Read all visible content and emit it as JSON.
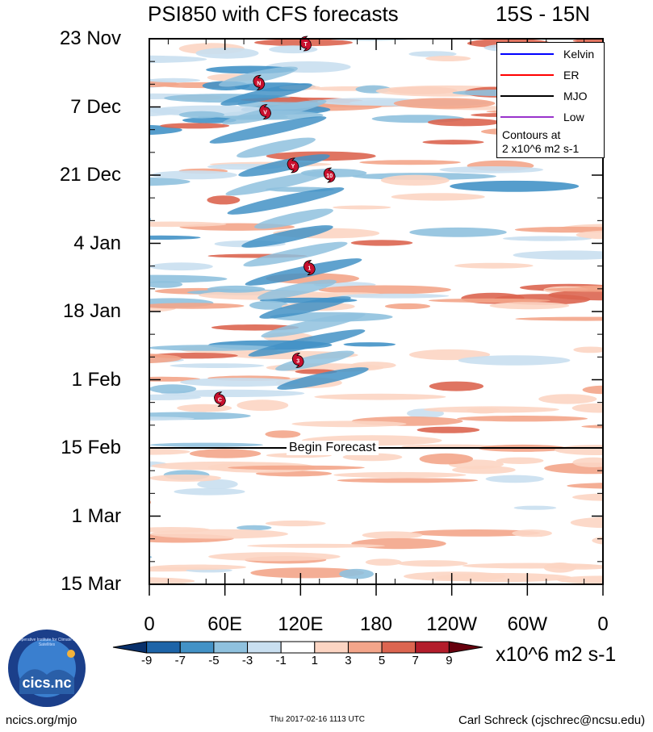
{
  "header": {
    "title": "PSI850 with CFS forecasts",
    "region": "15S - 15N"
  },
  "chart_data": {
    "type": "heatmap",
    "title": "PSI850 with CFS forecasts",
    "region": "15S - 15N",
    "y_tick_labels": [
      "23 Nov",
      "7 Dec",
      "21 Dec",
      "4 Jan",
      "18 Jan",
      "1 Feb",
      "15 Feb",
      "1 Mar",
      "15 Mar"
    ],
    "x_tick_labels": [
      "0",
      "60E",
      "120E",
      "180",
      "120W",
      "60W",
      "0"
    ],
    "x_range_deg_east": [
      0,
      360
    ],
    "forecast_marker": {
      "label": "Begin Forecast",
      "date": "15 Feb"
    },
    "colorbar": {
      "levels": [
        "-9",
        "-7",
        "-5",
        "-3",
        "-1",
        "1",
        "3",
        "5",
        "7",
        "9"
      ],
      "colors": [
        "#08306b",
        "#1d64a8",
        "#4392c6",
        "#8fc1de",
        "#c9dff0",
        "#ffffff",
        "#fcd5c3",
        "#f3a58a",
        "#dc6550",
        "#b31d2b",
        "#67000d"
      ],
      "units": "x10^6 m2 s-1"
    },
    "legend": {
      "entries": [
        {
          "name": "Kelvin",
          "color": "#0000ff"
        },
        {
          "name": "ER",
          "color": "#ff0000"
        },
        {
          "name": "MJO",
          "color": "#000000"
        },
        {
          "name": "Low",
          "color": "#9933cc"
        }
      ],
      "contour_note_1": "Contours at",
      "contour_note_2": "2 x10^6 m2 s-1"
    },
    "storm_markers": [
      {
        "label": "T",
        "lon_deg": 124,
        "date": "24 Nov"
      },
      {
        "label": "N",
        "lon_deg": 87,
        "date": "1 Dec"
      },
      {
        "label": "V",
        "lon_deg": 92,
        "date": "7 Dec"
      },
      {
        "label": "Y",
        "lon_deg": 114,
        "date": "18 Dec"
      },
      {
        "label": "10",
        "lon_deg": 143,
        "date": "20 Dec"
      },
      {
        "label": "1",
        "lon_deg": 127,
        "date": "8 Jan"
      },
      {
        "label": "3",
        "lon_deg": 118,
        "date": "27 Jan"
      },
      {
        "label": "C",
        "lon_deg": 56,
        "date": "4 Feb"
      }
    ]
  },
  "footer": {
    "site": "ncics.org/mjo",
    "timestamp": "Thu 2017-02-16 1113 UTC",
    "author": "Carl Schreck (cjschrec@ncsu.edu)",
    "logo_text": "cics.nc",
    "logo_ring": "Cooperative Institute for Climate and Satellites"
  }
}
